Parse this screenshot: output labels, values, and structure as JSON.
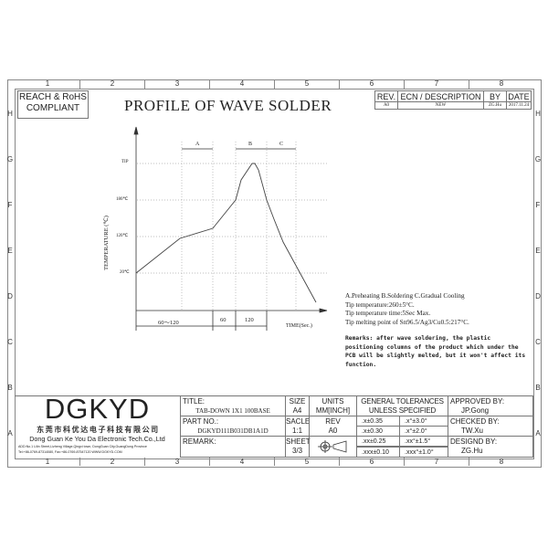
{
  "border": {
    "columns": [
      "1",
      "2",
      "3",
      "4",
      "5",
      "6",
      "7",
      "8"
    ],
    "rows": [
      "H",
      "G",
      "F",
      "E",
      "D",
      "C",
      "B",
      "A"
    ]
  },
  "compliance": {
    "line1": "REACH & RoHS",
    "line2": "COMPLIANT"
  },
  "title": "PROFILE OF WAVE SOLDER",
  "revision_table": {
    "headers": [
      "REV.",
      "ECN / DESCRIPTION",
      "BY",
      "DATE"
    ],
    "row": [
      "A0",
      "NEW",
      "ZG.Hu",
      "2017.11.24"
    ]
  },
  "diagram": {
    "y_axis_label": "TEMPERATURE (℃)",
    "y_ticks": [
      "TIP",
      "180℃",
      "120℃",
      "20℃"
    ],
    "zones": [
      "A",
      "B",
      "C"
    ],
    "time_segments": [
      "60～120",
      "60",
      "120"
    ],
    "x_axis_label": "TIME(Sec.)"
  },
  "notes": [
    "A.Preheating  B.Soldering  C.Gradual Cooling",
    "Tip temperature:260±5°C.",
    "Tip temperature time:5Sec Max.",
    "Tip melting point of Sn96.5/Ag3/Cu0.5:217°C."
  ],
  "remarks": "Remarks: after wave soldering, the plastic positioning columns of the product which under the PCB will be slightly melted, but it won't affect its function.",
  "company": {
    "logo": "DGKYD",
    "name_cn": "东 莞 市 科 优 达 电 子 科 技 有 限 公 司",
    "name_en": "Dong Guan Ke You Da Electronic Tech.Co.,Ltd",
    "address": "ADD:No.1 Lilin Street,Lizheng Village,Qingxi town, DongGuan City,GuangDong Province",
    "contact": "Tel:+86-0769-87314080, Fax:+86-0769-87547120  WWW.DGKYD.COM"
  },
  "title_block": {
    "title_label": "TITLE:",
    "title_value": "TAB-DOWN 1X1 100BASE",
    "part_label": "PART NO.:",
    "part_value": "DGKYD111B031DB1A1D",
    "remark_label": "REMARK:",
    "size_label": "SIZE",
    "size_value": "A4",
    "units_label": "UNITS",
    "units_value": "MM[INCH]",
    "scale_label": "SACLE",
    "scale_value": "1:1",
    "rev_label": "REV",
    "rev_value": "A0",
    "sheet_label": "SHEET",
    "sheet_value": "3/3",
    "tol_header1": "GENERAL TOLERANCES",
    "tol_header2": "UNLESS SPECIFIED",
    "tolerances": [
      [
        ".x±0.35",
        ".x°±3.0°"
      ],
      [
        ".x±0.30",
        ".x°±2.0°"
      ],
      [
        ".xx±0.25",
        ".xx°±1.5°"
      ],
      [
        ".xxx±0.10",
        ".xxx°±1.0°"
      ]
    ],
    "approved_label": "APPROVED BY:",
    "approved_value": "JP.Gong",
    "checked_label": "CHECKED BY:",
    "checked_value": "TW.Xu",
    "designed_label": "DESIGND BY:",
    "designed_value": "ZG.Hu"
  }
}
